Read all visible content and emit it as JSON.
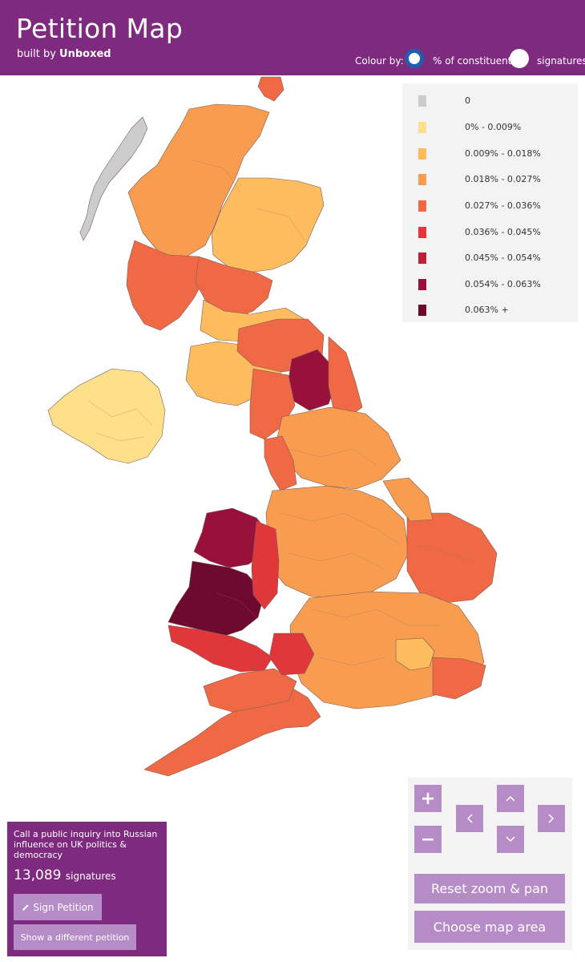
{
  "header": {
    "title": "Petition Map",
    "subtitle_prefix": "built by ",
    "subtitle_brand": "Unboxed",
    "colour_by_label": "Colour by:",
    "options": [
      {
        "label": "% of constituents",
        "selected": true
      },
      {
        "label": "signatures",
        "selected": false
      }
    ],
    "background": "#7d2a7f"
  },
  "legend": [
    {
      "label": "0",
      "color": "#cccccc"
    },
    {
      "label": "0% - 0.009%",
      "color": "#ffe08a"
    },
    {
      "label": "0.009% - 0.018%",
      "color": "#fdbd5e"
    },
    {
      "label": "0.018% - 0.027%",
      "color": "#f89c50"
    },
    {
      "label": "0.027% - 0.036%",
      "color": "#ef6a44"
    },
    {
      "label": "0.036% - 0.045%",
      "color": "#e0383a"
    },
    {
      "label": "0.045% - 0.054%",
      "color": "#bf1f38"
    },
    {
      "label": "0.054% - 0.063%",
      "color": "#97113a"
    },
    {
      "label": "0.063% +",
      "color": "#6e0a2f"
    }
  ],
  "petition": {
    "title": "Call a public inquiry into Russian influence on UK politics & democracy",
    "count": "13,089",
    "count_label": "signatures",
    "sign_button": "Sign Petition",
    "other_button": "Show a different petition"
  },
  "controls": {
    "zoom_in": "+",
    "zoom_out": "−",
    "pan_up": "^",
    "pan_down": "v",
    "pan_left": "<",
    "pan_right": ">",
    "reset": "Reset zoom & pan",
    "choose_area": "Choose map area"
  }
}
